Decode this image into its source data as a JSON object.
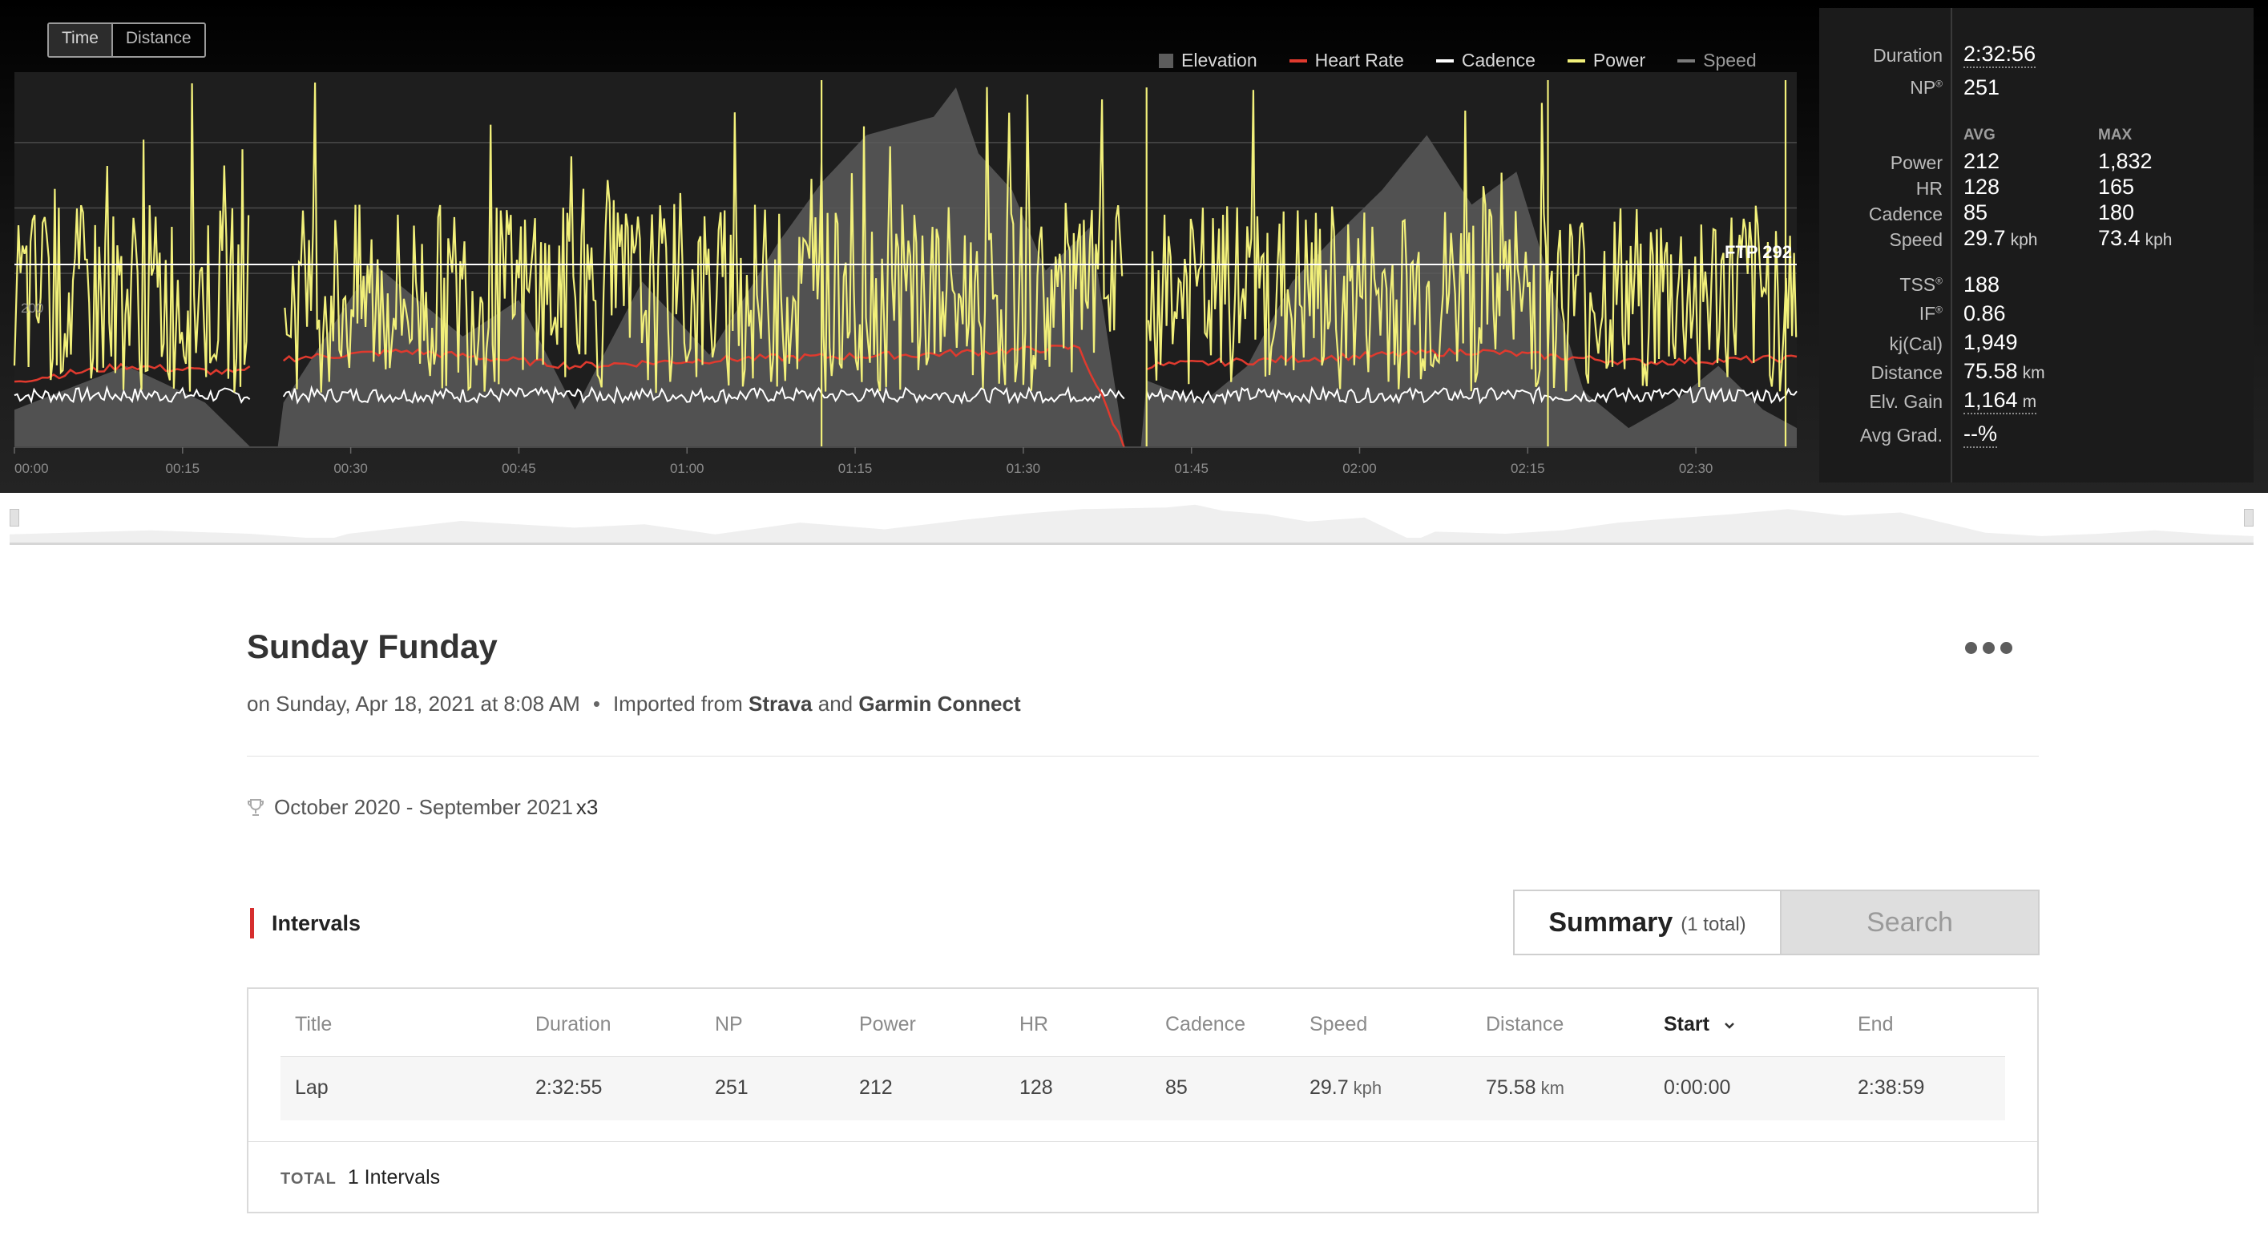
{
  "toggle": {
    "time": "Time",
    "distance": "Distance"
  },
  "legend": [
    {
      "name": "Elevation",
      "color": "#5c5c5c",
      "kind": "box"
    },
    {
      "name": "Heart Rate",
      "color": "#e03a2e",
      "kind": "line"
    },
    {
      "name": "Cadence",
      "color": "#ffffff",
      "kind": "line"
    },
    {
      "name": "Power",
      "color": "#f2f07a",
      "kind": "line"
    },
    {
      "name": "Speed",
      "color": "#7a7a7a",
      "kind": "line"
    }
  ],
  "chart": {
    "ftp_label": "FTP 292",
    "y_tick": "200",
    "x_ticks": [
      "00:00",
      "00:15",
      "00:30",
      "00:45",
      "01:00",
      "01:15",
      "01:30",
      "01:45",
      "02:00",
      "02:15",
      "02:30"
    ]
  },
  "chart_data": {
    "type": "line",
    "x_unit": "elapsed time (h:mm)",
    "x_range_minutes": [
      0,
      159
    ],
    "ftp": 292,
    "gaps_minutes": [
      [
        21,
        24
      ],
      [
        99,
        101
      ]
    ],
    "series": [
      {
        "name": "Elevation",
        "x_minutes": [
          0,
          10,
          17,
          21,
          24,
          32,
          40,
          45,
          50,
          56,
          62,
          68,
          72,
          76,
          82,
          84,
          86,
          89,
          92,
          96,
          99,
          101,
          106,
          110,
          114,
          118,
          122,
          126,
          130,
          134,
          140,
          144,
          148,
          152,
          156,
          159
        ],
        "level_pct": [
          10,
          22,
          12,
          0,
          12,
          50,
          30,
          40,
          10,
          45,
          25,
          55,
          72,
          85,
          90,
          98,
          80,
          70,
          48,
          60,
          0,
          18,
          12,
          22,
          45,
          58,
          70,
          85,
          66,
          75,
          15,
          5,
          12,
          22,
          10,
          5
        ]
      },
      {
        "name": "Heart Rate",
        "x_minutes": [
          0,
          10,
          20,
          24,
          35,
          50,
          65,
          80,
          95,
          99,
          101,
          115,
          130,
          145,
          159
        ],
        "level_pct": [
          18,
          22,
          20,
          24,
          26,
          22,
          24,
          25,
          27,
          0,
          22,
          24,
          26,
          23,
          24
        ]
      },
      {
        "name": "Cadence",
        "level_pct_avg": 14
      },
      {
        "name": "Power",
        "level_pct_avg": 38,
        "level_pct_max": 100
      }
    ]
  },
  "stats": {
    "duration_label": "Duration",
    "duration": "2:32:56",
    "np_label": "NP",
    "np_mark": "®",
    "np": "251",
    "avg_header": "AVG",
    "max_header": "MAX",
    "rows": [
      {
        "label": "Power",
        "avg": "212",
        "avg_unit": "",
        "max": "1,832",
        "max_unit": ""
      },
      {
        "label": "HR",
        "avg": "128",
        "avg_unit": "",
        "max": "165",
        "max_unit": ""
      },
      {
        "label": "Cadence",
        "avg": "85",
        "avg_unit": "",
        "max": "180",
        "max_unit": ""
      },
      {
        "label": "Speed",
        "avg": "29.7",
        "avg_unit": "kph",
        "max": "73.4",
        "max_unit": "kph"
      }
    ],
    "tss_label": "TSS",
    "tss": "188",
    "if_label": "IF",
    "if": "0.86",
    "kj_label": "kj(Cal)",
    "kj": "1,949",
    "distance_label": "Distance",
    "distance": "75.58",
    "distance_unit": "km",
    "elv_label": "Elv. Gain",
    "elv": "1,164",
    "elv_unit": "m",
    "grad_label": "Avg Grad.",
    "grad": "--%"
  },
  "activity": {
    "title": "Sunday Funday",
    "date_text": "on Sunday, Apr 18, 2021 at 8:08 AM",
    "imported_text": "Imported from",
    "source1": "Strava",
    "and_text": "and",
    "source2": "Garmin Connect",
    "season": "October 2020 - September 2021",
    "season_mult": "x3"
  },
  "intervals": {
    "title": "Intervals",
    "tab_summary": "Summary",
    "tab_summary_count": "(1 total)",
    "tab_search": "Search",
    "columns": [
      "Title",
      "Duration",
      "NP",
      "Power",
      "HR",
      "Cadence",
      "Speed",
      "Distance",
      "Start",
      "End"
    ],
    "rows": [
      {
        "title": "Lap",
        "duration": "2:32:55",
        "np": "251",
        "power": "212",
        "hr": "128",
        "cadence": "85",
        "speed": "29.7",
        "speed_unit": "kph",
        "distance": "75.58",
        "distance_unit": "km",
        "start": "0:00:00",
        "end": "2:38:59"
      }
    ],
    "total_label": "TOTAL",
    "total_text": "1 Intervals"
  }
}
